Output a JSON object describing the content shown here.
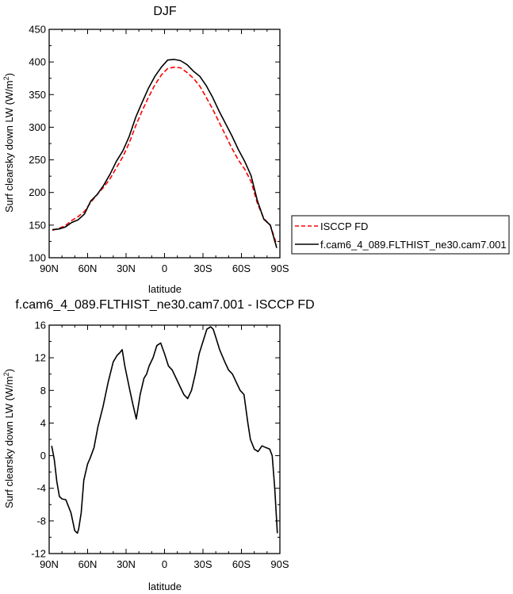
{
  "chart_data": [
    {
      "type": "line",
      "title": "DJF",
      "xlabel": "latitude",
      "ylabel": "Surf clearsky down LW (W/m²)",
      "ylabel_parts": {
        "main": "Surf clearsky down LW (W/m",
        "sup": "2",
        "tail": ")"
      },
      "xlim": [
        -90,
        90
      ],
      "ylim": [
        100,
        450
      ],
      "x_ticks": [
        -90,
        -60,
        -30,
        0,
        30,
        60,
        90
      ],
      "x_tick_labels": [
        "90N",
        "60N",
        "30N",
        "0",
        "30S",
        "60S",
        "90S"
      ],
      "y_ticks": [
        100,
        150,
        200,
        250,
        300,
        350,
        400,
        450
      ],
      "y_tick_labels": [
        "100",
        "150",
        "200",
        "250",
        "300",
        "350",
        "400",
        "450"
      ],
      "legend_position": "right",
      "x": [
        -87.5,
        -82.5,
        -77.5,
        -72.5,
        -67.5,
        -62.5,
        -57.5,
        -52.5,
        -47.5,
        -42.5,
        -37.5,
        -32.5,
        -27.5,
        -22.5,
        -17.5,
        -12.5,
        -7.5,
        -2.5,
        2.5,
        7.5,
        12.5,
        17.5,
        22.5,
        27.5,
        32.5,
        37.5,
        42.5,
        47.5,
        52.5,
        57.5,
        62.5,
        67.5,
        72.5,
        77.5,
        82.5,
        87.5
      ],
      "series": [
        {
          "name": "ISCCP FD",
          "color": "#ff0000",
          "dash": "dashed",
          "values": [
            142,
            145,
            149,
            157,
            163,
            171,
            185,
            197,
            208,
            221,
            238,
            255,
            276,
            302,
            325,
            346,
            365,
            380,
            390,
            392,
            391,
            384,
            375,
            363,
            346,
            328,
            308,
            288,
            268,
            250,
            236,
            217,
            183,
            160,
            150,
            120
          ]
        },
        {
          "name": "f.cam6_4_089.FLTHIST_ne30.cam7.001",
          "color": "#000000",
          "dash": "solid",
          "values": [
            143,
            144,
            147,
            154,
            158,
            167,
            187,
            197,
            211,
            228,
            248,
            264,
            286,
            315,
            338,
            360,
            378,
            392,
            403,
            404,
            402,
            396,
            386,
            378,
            364,
            346,
            325,
            306,
            287,
            266,
            248,
            226,
            187,
            159,
            150,
            115
          ]
        }
      ]
    },
    {
      "type": "line",
      "title": "f.cam6_4_089.FLTHIST_ne30.cam7.001 - ISCCP FD",
      "xlabel": "latitude",
      "ylabel": "Surf clearsky down LW (W/m²)",
      "ylabel_parts": {
        "main": "Surf clearsky down LW (W/m",
        "sup": "2",
        "tail": ")"
      },
      "xlim": [
        -90,
        90
      ],
      "ylim": [
        -12,
        16
      ],
      "x_ticks": [
        -90,
        -60,
        -30,
        0,
        30,
        60,
        90
      ],
      "x_tick_labels": [
        "90N",
        "60N",
        "30N",
        "0",
        "30S",
        "60S",
        "90S"
      ],
      "y_ticks": [
        -12,
        -8,
        -4,
        0,
        4,
        8,
        12,
        16
      ],
      "y_tick_labels": [
        "-12",
        "-8",
        "-4",
        "0",
        "4",
        "8",
        "12",
        "16"
      ],
      "x": [
        -88,
        -86,
        -84,
        -82,
        -80,
        -77,
        -73,
        -70,
        -68,
        -67,
        -65,
        -63,
        -60,
        -58,
        -55,
        -52,
        -48,
        -44,
        -40,
        -37,
        -35,
        -33,
        -31,
        -29,
        -27,
        -25,
        -22,
        -19,
        -16,
        -14,
        -12,
        -9,
        -6,
        -3,
        0,
        3,
        6,
        9,
        12,
        15,
        18,
        21,
        24,
        27,
        30,
        33,
        36,
        38,
        40,
        43,
        47,
        50,
        53,
        56,
        59,
        62,
        65,
        67,
        70,
        73,
        76,
        79,
        82,
        84,
        86,
        88
      ],
      "series": [
        {
          "name": "",
          "color": "#000000",
          "dash": "solid",
          "values": [
            1.2,
            -0.5,
            -3.2,
            -5.0,
            -5.3,
            -5.4,
            -7.0,
            -9.2,
            -9.5,
            -9.0,
            -7.0,
            -3.0,
            -1.0,
            -0.3,
            1.0,
            3.5,
            6.0,
            9.0,
            11.5,
            12.3,
            12.6,
            13.0,
            11.0,
            9.5,
            8.0,
            6.5,
            4.5,
            7.5,
            9.5,
            10.0,
            11.0,
            12.0,
            13.5,
            13.8,
            12.5,
            11.0,
            10.5,
            9.5,
            8.5,
            7.5,
            7.0,
            8.0,
            10.0,
            12.5,
            14.0,
            15.5,
            15.8,
            15.5,
            14.5,
            13.0,
            11.5,
            10.5,
            10.0,
            9.0,
            8.0,
            7.5,
            4.0,
            2.0,
            0.8,
            0.5,
            1.2,
            1.0,
            0.8,
            0.0,
            -4.0,
            -9.5
          ]
        }
      ]
    }
  ]
}
